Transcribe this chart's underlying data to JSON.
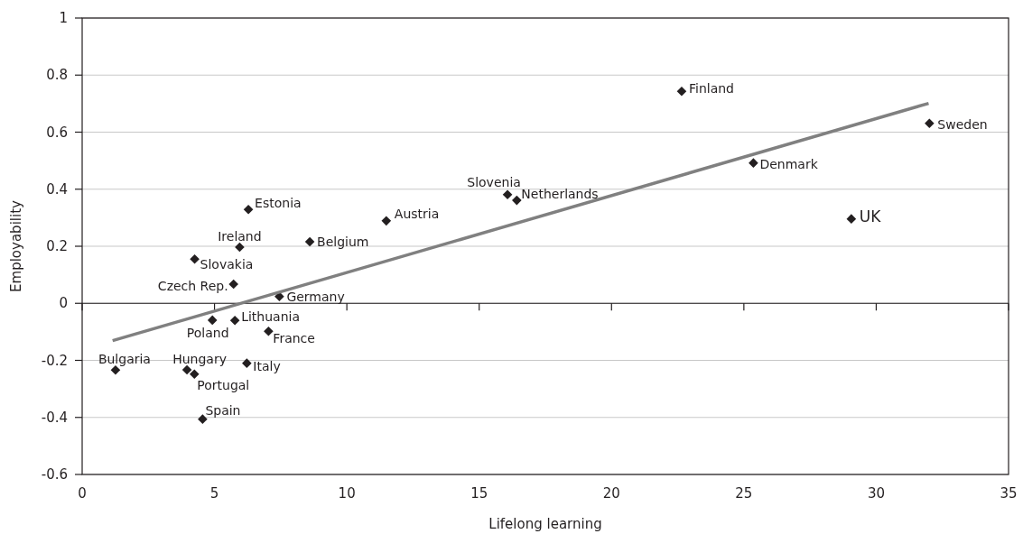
{
  "chart_data": {
    "type": "scatter",
    "xlabel": "Lifelong learning",
    "ylabel": "Employability",
    "xlim": [
      0,
      35
    ],
    "xticks": [
      0,
      5,
      10,
      15,
      20,
      25,
      30,
      35
    ],
    "ylim": [
      -0.6,
      1
    ],
    "yticks": [
      -0.6,
      -0.4,
      -0.2,
      0,
      0.2,
      0.4,
      0.6,
      0.8,
      1
    ],
    "grid": "y",
    "marker": "diamond",
    "series": [
      {
        "color": "#231f20",
        "x": [
          1.26,
          3.96,
          4.24,
          4.55,
          4.92,
          5.77,
          7.04,
          6.22,
          7.45,
          5.72,
          4.25,
          5.95,
          6.28,
          8.6,
          11.49,
          16.07,
          16.42,
          22.65,
          25.36,
          29.06,
          32.01
        ],
        "values": [
          -0.234,
          -0.233,
          -0.248,
          -0.406,
          -0.059,
          -0.06,
          -0.098,
          -0.21,
          0.024,
          0.067,
          0.155,
          0.197,
          0.329,
          0.216,
          0.289,
          0.381,
          0.361,
          0.743,
          0.492,
          0.296,
          0.631
        ]
      },
      {
        "type": "line",
        "color": "#808080",
        "line_style": "solid",
        "marker": "none",
        "x": [
          1.15,
          31.98
        ],
        "values": [
          -0.131,
          0.701
        ]
      }
    ],
    "annotations": [
      {
        "text": "Bulgaria",
        "x": 1.26,
        "y": -0.234
      },
      {
        "text": "Hungary",
        "x": 3.96,
        "y": -0.233
      },
      {
        "text": "Portugal",
        "x": 4.24,
        "y": -0.248
      },
      {
        "text": "Spain",
        "x": 4.55,
        "y": -0.406
      },
      {
        "text": "Poland",
        "x": 4.92,
        "y": -0.059
      },
      {
        "text": "Lithuania",
        "x": 5.77,
        "y": -0.06
      },
      {
        "text": "France",
        "x": 7.04,
        "y": -0.098
      },
      {
        "text": "Italy",
        "x": 6.22,
        "y": -0.21
      },
      {
        "text": "Germany",
        "x": 7.45,
        "y": 0.024
      },
      {
        "text": "Czech Rep.",
        "x": 5.72,
        "y": 0.067
      },
      {
        "text": "Slovakia",
        "x": 4.25,
        "y": 0.155
      },
      {
        "text": "Ireland",
        "x": 5.95,
        "y": 0.197
      },
      {
        "text": "Estonia",
        "x": 6.28,
        "y": 0.329
      },
      {
        "text": "Belgium",
        "x": 8.6,
        "y": 0.216
      },
      {
        "text": "Austria",
        "x": 11.49,
        "y": 0.289
      },
      {
        "text": "Slovenia",
        "x": 16.07,
        "y": 0.381
      },
      {
        "text": "Netherlands",
        "x": 16.42,
        "y": 0.361
      },
      {
        "text": "Finland",
        "x": 22.65,
        "y": 0.743
      },
      {
        "text": "Denmark",
        "x": 25.36,
        "y": 0.492
      },
      {
        "text": "UK",
        "x": 29.06,
        "y": 0.296
      },
      {
        "text": "Sweden",
        "x": 32.01,
        "y": 0.631
      }
    ]
  }
}
